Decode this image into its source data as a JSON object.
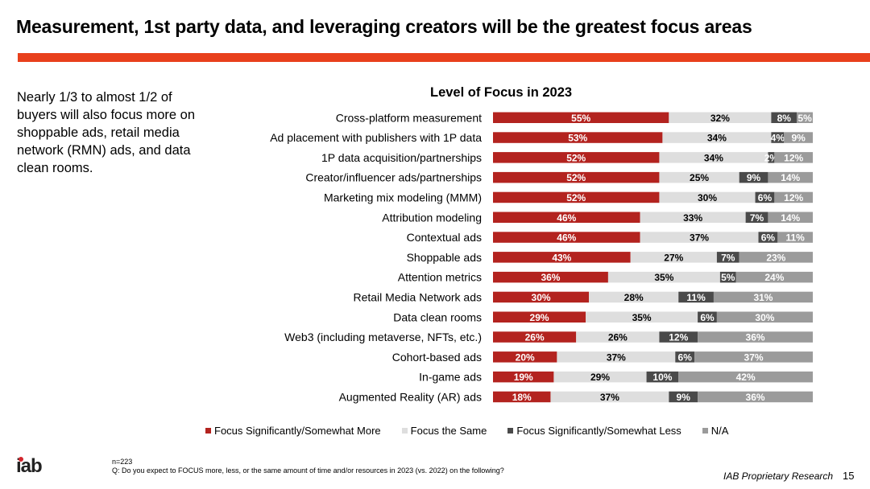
{
  "slide": {
    "title": "Measurement, 1st party data, and leveraging creators will be the greatest focus areas",
    "side_text": "Nearly 1/3 to almost 1/2 of buyers will also focus more on shoppable ads, retail media network (RMN) ads, and data clean rooms.",
    "sample": "n=223",
    "question": "Q: Do you expect to FOCUS more, less, or the same amount of time and/or resources in 2023 (vs. 2022) on the following?",
    "logo_text": "iab",
    "brand": "IAB Proprietary Research",
    "page_number": "15",
    "accent_color": "#e8401c"
  },
  "chart_data": {
    "type": "bar",
    "orientation": "horizontal-stacked-100",
    "title": "Level of Focus in 2023",
    "categories": [
      "Cross-platform measurement",
      "Ad placement with publishers with 1P data",
      "1P data acquisition/partnerships",
      "Creator/influencer ads/partnerships",
      "Marketing mix modeling (MMM)",
      "Attribution modeling",
      "Contextual ads",
      "Shoppable ads",
      "Attention metrics",
      "Retail Media Network ads",
      "Data clean rooms",
      "Web3 (including metaverse, NFTs, etc.)",
      "Cohort-based ads",
      "In-game ads",
      "Augmented Reality (AR) ads"
    ],
    "series": [
      {
        "name": "Focus Significantly/Somewhat More",
        "color": "#b3231f",
        "label_color": "#ffffff",
        "values": [
          55,
          53,
          52,
          52,
          52,
          46,
          46,
          43,
          36,
          30,
          29,
          26,
          20,
          19,
          18
        ]
      },
      {
        "name": "Focus the Same",
        "color": "#dedede",
        "label_color": "#000000",
        "values": [
          32,
          34,
          34,
          25,
          30,
          33,
          37,
          27,
          35,
          28,
          35,
          26,
          37,
          29,
          37
        ]
      },
      {
        "name": "Focus Significantly/Somewhat Less",
        "color": "#4a4a4a",
        "label_color": "#ffffff",
        "values": [
          8,
          4,
          2,
          9,
          6,
          7,
          6,
          7,
          5,
          11,
          6,
          12,
          6,
          10,
          9
        ]
      },
      {
        "name": "N/A",
        "color": "#9b9b9b",
        "label_color": "#ffffff",
        "values": [
          5,
          9,
          12,
          14,
          12,
          14,
          11,
          23,
          24,
          31,
          30,
          36,
          37,
          42,
          36
        ]
      }
    ],
    "value_suffix": "%",
    "xlim": [
      0,
      100
    ],
    "legend_position": "bottom",
    "grid": false
  }
}
